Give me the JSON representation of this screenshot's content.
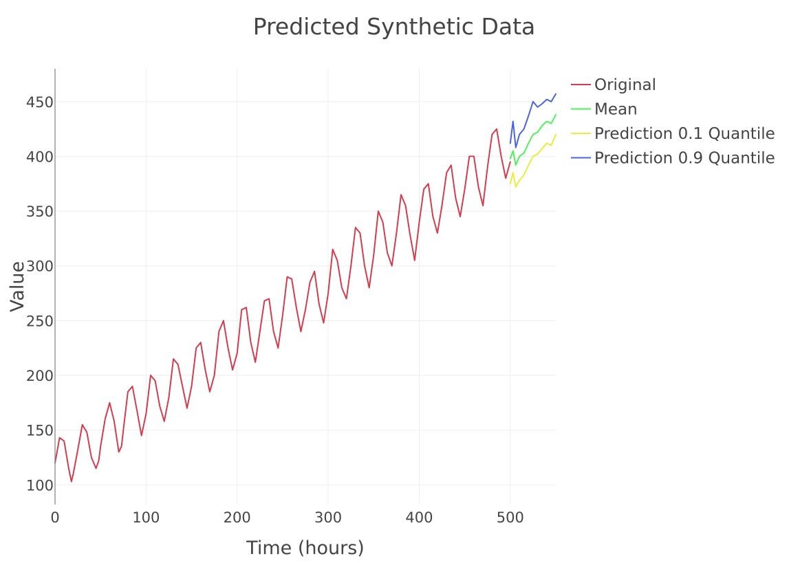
{
  "chart_data": {
    "type": "line",
    "title": "Predicted Synthetic Data",
    "xlabel": "Time (hours)",
    "ylabel": "Value",
    "xlim": [
      0,
      550
    ],
    "ylim": [
      82,
      480
    ],
    "xticks": [
      0,
      100,
      200,
      300,
      400,
      500
    ],
    "yticks": [
      100,
      150,
      200,
      250,
      300,
      350,
      400,
      450
    ],
    "grid": true,
    "legend_position": "top-right",
    "series": [
      {
        "name": "Original",
        "color": "#d63b4c",
        "x": [
          0,
          5,
          10,
          15,
          18,
          20,
          25,
          30,
          35,
          40,
          45,
          48,
          50,
          55,
          60,
          65,
          70,
          73,
          75,
          80,
          85,
          90,
          95,
          100,
          105,
          110,
          115,
          120,
          125,
          130,
          135,
          140,
          145,
          150,
          155,
          160,
          165,
          170,
          175,
          180,
          185,
          190,
          195,
          200,
          205,
          210,
          215,
          220,
          225,
          230,
          235,
          240,
          245,
          250,
          255,
          260,
          265,
          270,
          275,
          280,
          285,
          290,
          295,
          300,
          305,
          310,
          315,
          320,
          325,
          330,
          335,
          340,
          345,
          350,
          355,
          360,
          365,
          370,
          375,
          380,
          385,
          390,
          395,
          400,
          405,
          410,
          415,
          420,
          425,
          430,
          435,
          440,
          445,
          450,
          455,
          460,
          465,
          470,
          475,
          480,
          485,
          490,
          495,
          500
        ],
        "y": [
          120,
          143,
          140,
          115,
          103,
          110,
          132,
          155,
          148,
          125,
          115,
          122,
          135,
          160,
          175,
          158,
          130,
          135,
          150,
          185,
          190,
          168,
          145,
          165,
          200,
          195,
          172,
          158,
          180,
          215,
          210,
          190,
          170,
          190,
          225,
          230,
          205,
          185,
          200,
          240,
          250,
          225,
          205,
          220,
          260,
          262,
          230,
          212,
          240,
          268,
          270,
          240,
          225,
          255,
          290,
          288,
          262,
          240,
          260,
          285,
          295,
          265,
          248,
          275,
          315,
          305,
          280,
          270,
          300,
          335,
          330,
          300,
          280,
          310,
          350,
          340,
          312,
          300,
          330,
          365,
          355,
          328,
          305,
          340,
          370,
          375,
          345,
          330,
          355,
          385,
          392,
          362,
          345,
          370,
          400,
          400,
          372,
          355,
          390,
          420,
          425,
          400,
          380,
          395
        ]
      },
      {
        "name": "Mean",
        "color": "#4ef15a",
        "x": [
          500,
          503,
          506,
          510,
          515,
          520,
          525,
          530,
          535,
          540,
          545,
          550
        ],
        "y": [
          398,
          405,
          392,
          400,
          403,
          412,
          420,
          422,
          428,
          432,
          430,
          438
        ]
      },
      {
        "name": "Prediction 0.1 Quantile",
        "color": "#e8ee3a",
        "x": [
          500,
          503,
          506,
          510,
          515,
          520,
          525,
          530,
          535,
          540,
          545,
          550
        ],
        "y": [
          375,
          385,
          372,
          378,
          383,
          392,
          400,
          402,
          407,
          412,
          410,
          420
        ]
      },
      {
        "name": "Prediction 0.9 Quantile",
        "color": "#4a62e8",
        "x": [
          500,
          503,
          506,
          510,
          515,
          520,
          525,
          530,
          535,
          540,
          545,
          550
        ],
        "y": [
          412,
          432,
          408,
          420,
          425,
          437,
          450,
          445,
          448,
          452,
          450,
          457
        ]
      }
    ]
  }
}
